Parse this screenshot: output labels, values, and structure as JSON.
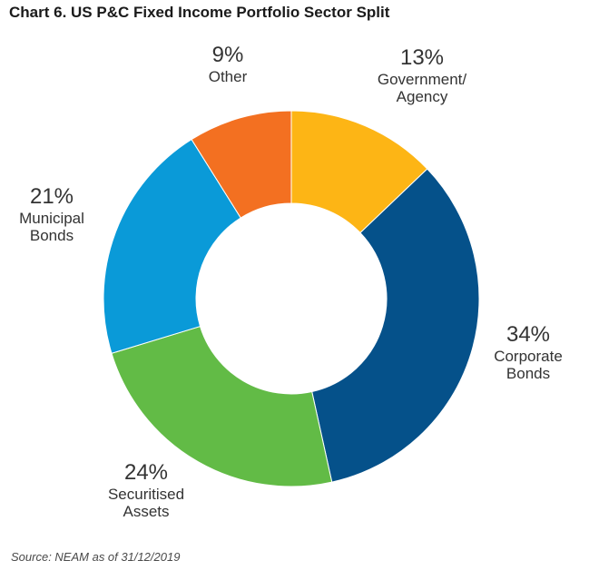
{
  "chart_data": {
    "type": "pie",
    "title": "Chart 6. US P&C Fixed Income Portfolio Sector Split",
    "source": "Source: NEAM as of 31/12/2019",
    "donut": true,
    "slices": [
      {
        "label": "Government/ Agency",
        "label_lines": [
          "Government/",
          "Agency"
        ],
        "value": 13,
        "value_label": "13%",
        "color": "#FDB515"
      },
      {
        "label": "Corporate Bonds",
        "label_lines": [
          "Corporate",
          "Bonds"
        ],
        "value": 34,
        "value_label": "34%",
        "color": "#05518A"
      },
      {
        "label": "Securitised Assets",
        "label_lines": [
          "Securitised",
          "Assets"
        ],
        "value": 24,
        "value_label": "24%",
        "color": "#62BB46"
      },
      {
        "label": "Municipal Bonds",
        "label_lines": [
          "Municipal",
          "Bonds"
        ],
        "value": 21,
        "value_label": "21%",
        "color": "#0A9AD8"
      },
      {
        "label": "Other",
        "label_lines": [
          "Other"
        ],
        "value": 9,
        "value_label": "9%",
        "color": "#F37021"
      }
    ]
  }
}
